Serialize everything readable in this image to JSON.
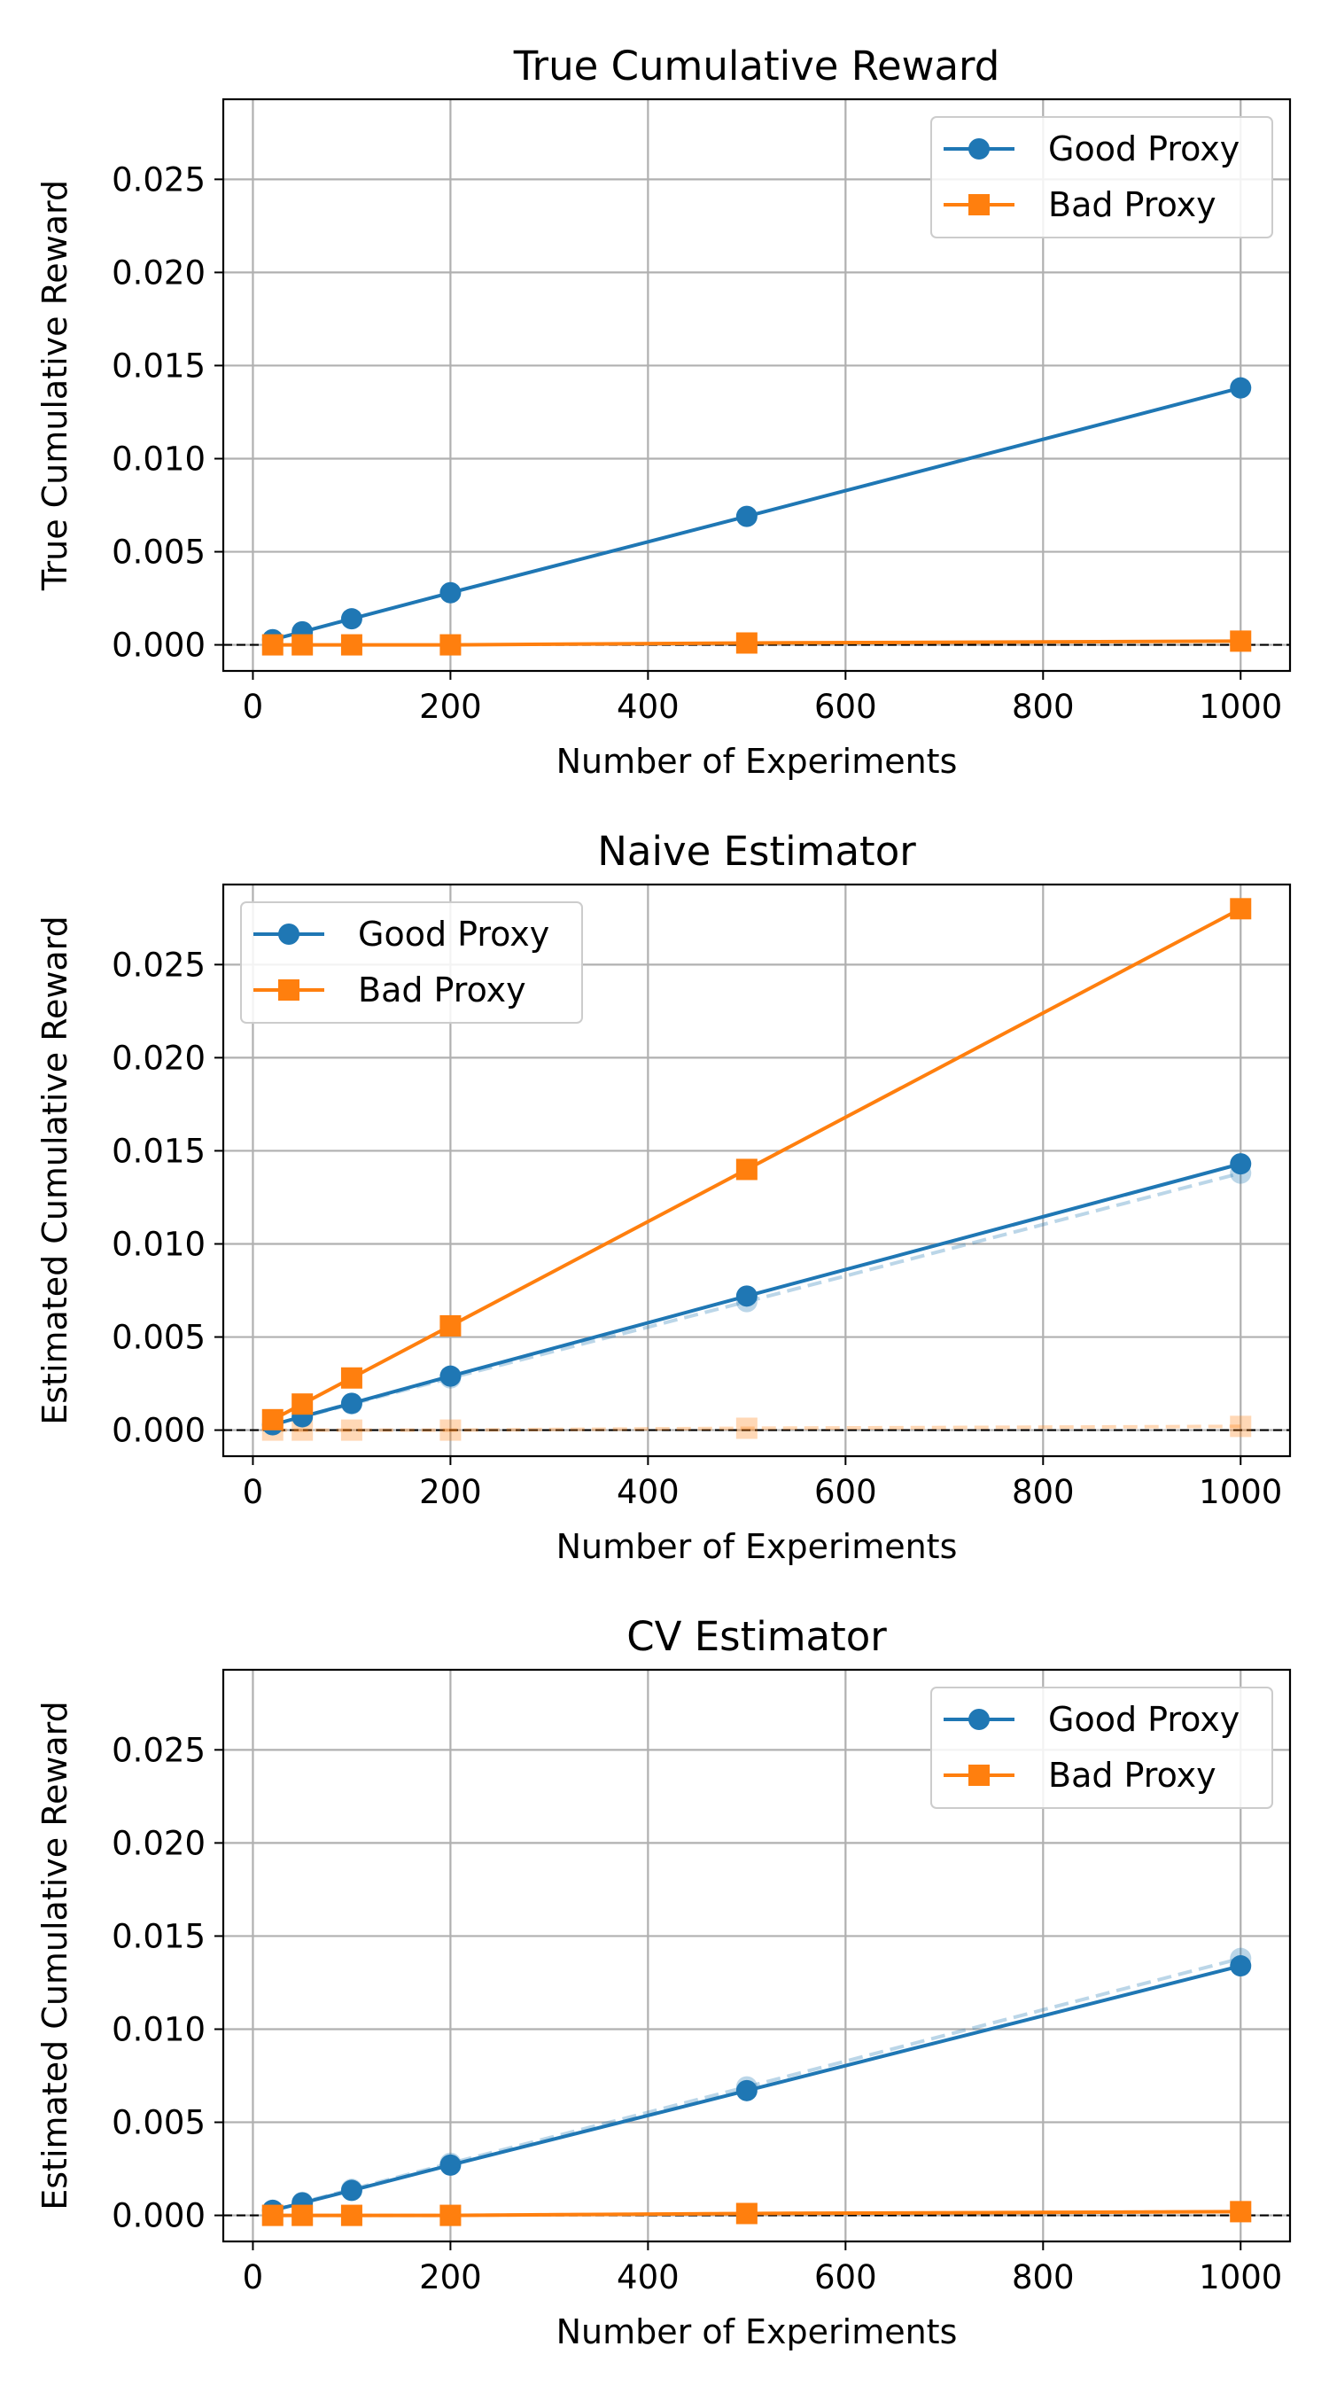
{
  "chart_data": [
    {
      "type": "line",
      "title": "True Cumulative Reward",
      "xlabel": "Number of Experiments",
      "ylabel": "True Cumulative Reward",
      "xlim": [
        -30,
        1050
      ],
      "ylim": [
        -0.0014,
        0.0293
      ],
      "xticks": [
        0,
        200,
        400,
        600,
        800,
        1000
      ],
      "xtick_labels": [
        "0",
        "200",
        "400",
        "600",
        "800",
        "1000"
      ],
      "yticks": [
        0,
        0.005,
        0.01,
        0.015,
        0.02,
        0.025
      ],
      "ytick_labels": [
        "0.000",
        "0.005",
        "0.010",
        "0.015",
        "0.020",
        "0.025"
      ],
      "grid": true,
      "legend": "top-right",
      "x": [
        20,
        50,
        100,
        200,
        500,
        1000
      ],
      "series": [
        {
          "name": "Good Proxy",
          "color": "#1f77b4",
          "marker": "circle",
          "values": [
            0.00028,
            0.0007,
            0.0014,
            0.0028,
            0.0069,
            0.0138
          ]
        },
        {
          "name": "Bad Proxy",
          "color": "#ff7f0e",
          "marker": "square",
          "values": [
            0.0,
            0.0,
            0.0,
            0.0,
            0.0001,
            0.0002
          ]
        }
      ],
      "reference_series": []
    },
    {
      "type": "line",
      "title": "Naive Estimator",
      "xlabel": "Number of Experiments",
      "ylabel": "Estimated Cumulative Reward",
      "xlim": [
        -30,
        1050
      ],
      "ylim": [
        -0.0014,
        0.0293
      ],
      "xticks": [
        0,
        200,
        400,
        600,
        800,
        1000
      ],
      "xtick_labels": [
        "0",
        "200",
        "400",
        "600",
        "800",
        "1000"
      ],
      "yticks": [
        0,
        0.005,
        0.01,
        0.015,
        0.02,
        0.025
      ],
      "ytick_labels": [
        "0.000",
        "0.005",
        "0.010",
        "0.015",
        "0.020",
        "0.025"
      ],
      "grid": true,
      "legend": "top-left",
      "x": [
        20,
        50,
        100,
        200,
        500,
        1000
      ],
      "series": [
        {
          "name": "Good Proxy",
          "color": "#1f77b4",
          "marker": "circle",
          "values": [
            0.00029,
            0.00072,
            0.00144,
            0.0029,
            0.0072,
            0.0143
          ]
        },
        {
          "name": "Bad Proxy",
          "color": "#ff7f0e",
          "marker": "square",
          "values": [
            0.00056,
            0.0014,
            0.0028,
            0.0056,
            0.014,
            0.028
          ]
        }
      ],
      "reference_series": [
        {
          "color": "#1f77b4",
          "marker": "circle",
          "values": [
            0.00028,
            0.0007,
            0.0014,
            0.0028,
            0.0069,
            0.0138
          ]
        },
        {
          "color": "#ff7f0e",
          "marker": "square",
          "values": [
            0.0,
            0.0,
            0.0,
            0.0,
            0.0001,
            0.0002
          ]
        }
      ]
    },
    {
      "type": "line",
      "title": "CV Estimator",
      "xlabel": "Number of Experiments",
      "ylabel": "Estimated Cumulative Reward",
      "xlim": [
        -30,
        1050
      ],
      "ylim": [
        -0.0014,
        0.0293
      ],
      "xticks": [
        0,
        200,
        400,
        600,
        800,
        1000
      ],
      "xtick_labels": [
        "0",
        "200",
        "400",
        "600",
        "800",
        "1000"
      ],
      "yticks": [
        0,
        0.005,
        0.01,
        0.015,
        0.02,
        0.025
      ],
      "ytick_labels": [
        "0.000",
        "0.005",
        "0.010",
        "0.015",
        "0.020",
        "0.025"
      ],
      "grid": true,
      "legend": "top-right",
      "x": [
        20,
        50,
        100,
        200,
        500,
        1000
      ],
      "series": [
        {
          "name": "Good Proxy",
          "color": "#1f77b4",
          "marker": "circle",
          "values": [
            0.00027,
            0.00067,
            0.00134,
            0.0027,
            0.0067,
            0.0134
          ]
        },
        {
          "name": "Bad Proxy",
          "color": "#ff7f0e",
          "marker": "square",
          "values": [
            0.0,
            0.0,
            0.0,
            0.0,
            0.0001,
            0.0002
          ]
        }
      ],
      "reference_series": [
        {
          "color": "#1f77b4",
          "marker": "circle",
          "values": [
            0.00028,
            0.0007,
            0.0014,
            0.0028,
            0.0069,
            0.0138
          ]
        },
        {
          "color": "#ff7f0e",
          "marker": "square",
          "values": [
            0.0,
            0.0,
            0.0,
            0.0,
            0.0001,
            0.0002
          ]
        }
      ]
    }
  ]
}
